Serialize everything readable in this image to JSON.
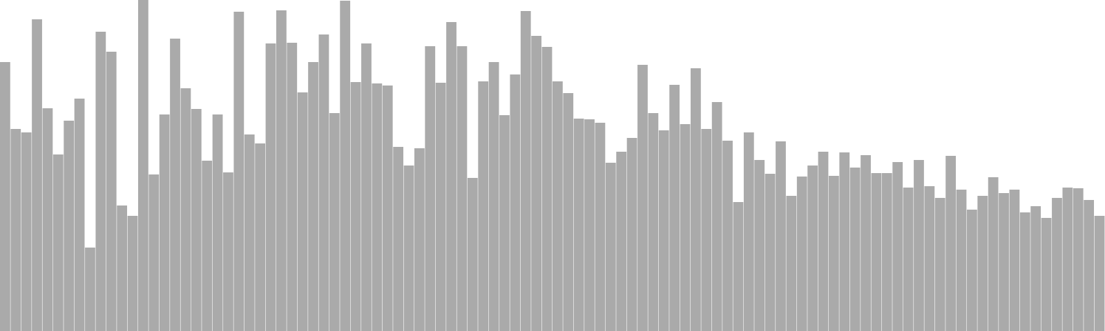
{
  "chart_data": {
    "type": "bar",
    "title": "",
    "xlabel": "",
    "ylabel": "",
    "ylim": [
      0,
      480
    ],
    "grid": false,
    "legend": "none",
    "bar_color": "#aaaaaa",
    "separator_color": "#ffffff",
    "values": [
      390,
      293,
      288,
      452,
      323,
      256,
      305,
      337,
      121,
      434,
      405,
      182,
      167,
      480,
      227,
      314,
      424,
      352,
      322,
      247,
      314,
      230,
      463,
      285,
      272,
      417,
      465,
      418,
      346,
      390,
      430,
      316,
      479,
      361,
      417,
      359,
      356,
      267,
      240,
      265,
      413,
      360,
      448,
      413,
      222,
      362,
      390,
      313,
      372,
      464,
      428,
      412,
      362,
      345,
      308,
      307,
      302,
      244,
      260,
      280,
      386,
      316,
      291,
      357,
      300,
      381,
      293,
      332,
      276,
      187,
      288,
      248,
      228,
      275,
      196,
      224,
      240,
      260,
      225,
      259,
      237,
      255,
      229,
      229,
      245,
      208,
      248,
      210,
      193,
      254,
      205,
      176,
      196,
      223,
      200,
      205,
      172,
      181,
      164,
      193,
      208,
      207,
      190,
      167
    ]
  }
}
